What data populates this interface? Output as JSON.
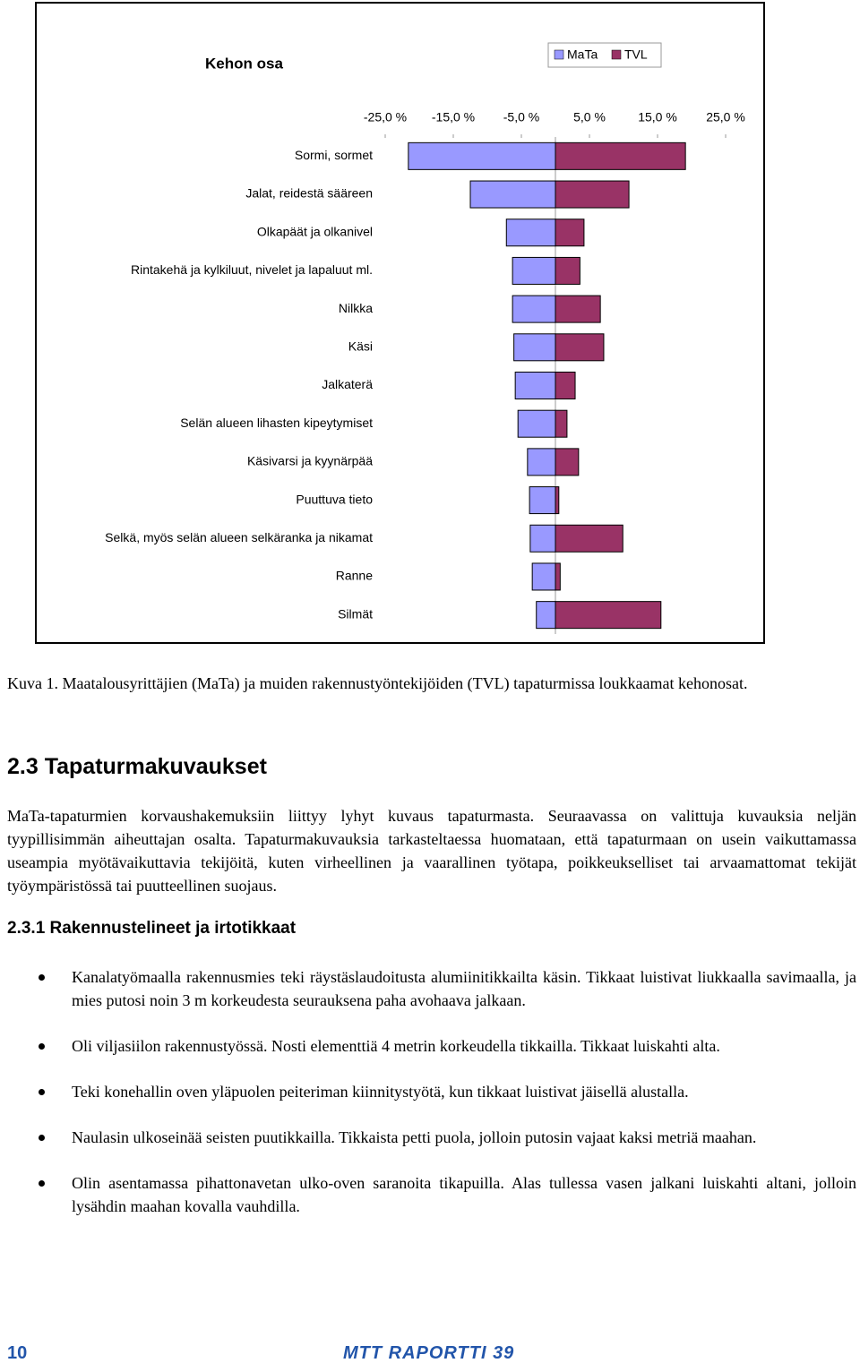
{
  "chart_data": {
    "type": "bar",
    "orientation": "horizontal",
    "title": "Kehon osa",
    "categories": [
      "Sormi, sormet",
      "Jalat, reidestä sääreen",
      "Olkapäät ja olkanivel",
      "Rintakehä ja kylkiluut, nivelet ja lapaluut ml.",
      "Nilkka",
      "Käsi",
      "Jalkaterä",
      "Selän alueen lihasten kipeytymiset",
      "Käsivarsi ja kyynärpää",
      "Puuttuva tieto",
      "Selkä, myös selän alueen selkäranka ja nikamat",
      "Ranne",
      "Silmät"
    ],
    "series": [
      {
        "name": "MaTa",
        "color": "#9999ff",
        "values": [
          -21.6,
          -12.5,
          -7.2,
          -6.3,
          -6.3,
          -6.1,
          -5.9,
          -5.5,
          -4.1,
          -3.8,
          -3.7,
          -3.4,
          -2.8
        ]
      },
      {
        "name": "TVL",
        "color": "#993366",
        "values": [
          19.1,
          10.8,
          4.2,
          3.6,
          6.6,
          7.1,
          2.9,
          1.7,
          3.4,
          0.5,
          9.9,
          0.7,
          15.5
        ]
      }
    ],
    "xlim": [
      -25,
      25
    ],
    "xticks": [
      {
        "value": -25,
        "label": "-25,0 %"
      },
      {
        "value": -15,
        "label": "-15,0 %"
      },
      {
        "value": -5,
        "label": "-5,0 %"
      },
      {
        "value": 5,
        "label": "5,0 %"
      },
      {
        "value": 15,
        "label": "15,0 %"
      },
      {
        "value": 25,
        "label": "25,0 %"
      }
    ],
    "grid": false,
    "legend": "top-right"
  },
  "caption": "Kuva 1. Maatalousyrittäjien (MaTa) ja muiden rakennustyöntekijöiden (TVL) tapaturmissa loukkaamat kehonosat.",
  "heading": "2.3 Tapaturmakuvaukset",
  "paragraph": "MaTa-tapaturmien korvaushakemuksiin liittyy lyhyt kuvaus tapaturmasta. Seuraavassa on valittuja kuvauksia neljän tyypillisimmän aiheuttajan osalta. Tapaturmakuvauksia tarkasteltaessa huomataan, että tapaturmaan on usein vaikuttamassa useampia myötävaikuttavia tekijöitä, kuten virheellinen ja vaarallinen työtapa, poikkeukselliset tai arvaamattomat tekijät työympäristössä tai puutteellinen suojaus.",
  "subheading": "2.3.1 Rakennustelineet ja irtotikkaat",
  "bullets": [
    "Kanalatyömaalla rakennusmies teki räystäslaudoitusta alumiinitikkailta käsin. Tikkaat luistivat liukkaalla savimaalla, ja mies putosi noin 3 m korkeudesta seurauksena paha avohaava jalkaan.",
    "Oli viljasiilon rakennustyössä. Nosti elementtiä 4 metrin korkeudella tikkailla. Tikkaat luiskahti alta.",
    "Teki konehallin oven yläpuolen peiteriman kiinnitystyötä, kun tikkaat luistivat jäisellä alustalla.",
    "Naulasin ulkoseinää seisten puutikkailla. Tikkaista petti puola, jolloin putosin vajaat kaksi metriä maahan.",
    "Olin asentamassa pihattonavetan ulko-oven saranoita tikapuilla. Alas tullessa vasen jalkani luiskahti altani, jolloin lysähdin maahan kovalla vauhdilla."
  ],
  "footer": {
    "page": "10",
    "series": "MTT RAPORTTI 39"
  }
}
